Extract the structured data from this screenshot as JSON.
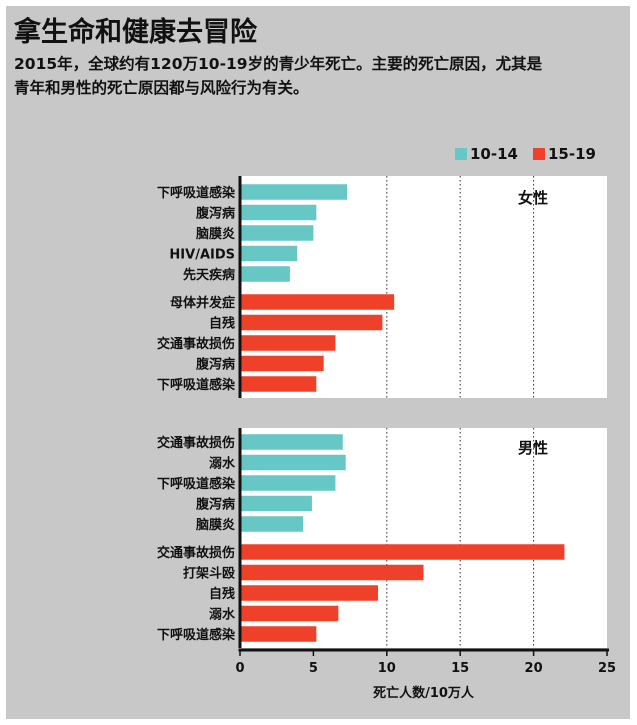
{
  "header": {
    "title": "拿生命和健康去冒险",
    "subtitle_line1": "2015年，全球约有120万10-19岁的青少年死亡。主要的死亡原因，尤其是",
    "subtitle_line2": "青年和男性的死亡原因都与风险行为有关。"
  },
  "colors": {
    "age_10_14": "#66c7c4",
    "age_15_19": "#ef4129",
    "background": "#c8c8c8"
  },
  "chart_data": {
    "type": "bar",
    "orientation": "horizontal",
    "xlabel": "死亡人数/10万人",
    "xlim": [
      0,
      25
    ],
    "xticks": [
      0,
      5,
      10,
      15,
      20,
      25
    ],
    "grid": "dotted vertical at 10, 15, 20",
    "legend": {
      "placement": "top-right",
      "entries": [
        {
          "label": "10-14",
          "color": "#66c7c4"
        },
        {
          "label": "15-19",
          "color": "#ef4129"
        }
      ]
    },
    "panels": [
      {
        "name": "女性",
        "groups": [
          {
            "age": "10-14",
            "color": "#66c7c4",
            "categories": [
              "下呼吸道感染",
              "腹泻病",
              "脑膜炎",
              "HIV/AIDS",
              "先天疾病"
            ],
            "values": [
              7.3,
              5.2,
              5.0,
              3.9,
              3.4
            ]
          },
          {
            "age": "15-19",
            "color": "#ef4129",
            "categories": [
              "母体并发症",
              "自残",
              "交通事故损伤",
              "腹泻病",
              "下呼吸道感染"
            ],
            "values": [
              10.5,
              9.7,
              6.5,
              5.7,
              5.2
            ]
          }
        ]
      },
      {
        "name": "男性",
        "groups": [
          {
            "age": "10-14",
            "color": "#66c7c4",
            "categories": [
              "交通事故损伤",
              "溺水",
              "下呼吸道感染",
              "腹泻病",
              "脑膜炎"
            ],
            "values": [
              7.0,
              7.2,
              6.5,
              4.9,
              4.3
            ]
          },
          {
            "age": "15-19",
            "color": "#ef4129",
            "categories": [
              "交通事故损伤",
              "打架斗殴",
              "自残",
              "溺水",
              "下呼吸道感染"
            ],
            "values": [
              22.1,
              12.5,
              9.4,
              6.7,
              5.2
            ]
          }
        ]
      }
    ]
  }
}
